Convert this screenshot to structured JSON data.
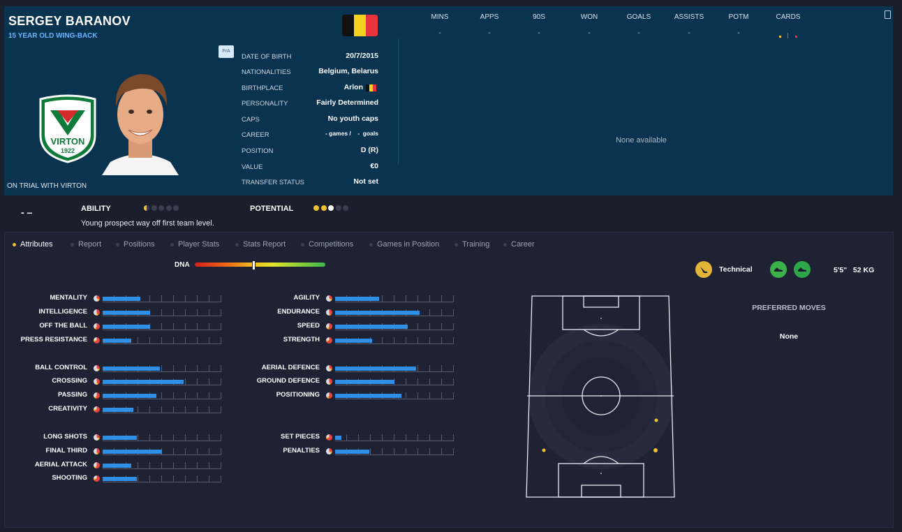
{
  "player": {
    "name": "SERGEY BARANOV",
    "subtitle": "15 YEAR OLD WING-BACK",
    "status": "ON TRIAL WITH VIRTON",
    "fra_badge": "FrA",
    "flag_colors": [
      "#111111",
      "#f5d21f",
      "#e8353d"
    ],
    "club_crest_text": "VIRTON",
    "club_year": "1922"
  },
  "info": [
    {
      "label": "DATE OF BIRTH",
      "value": "20/7/2015"
    },
    {
      "label": "NATIONALITIES",
      "value": "Belgium, Belarus"
    },
    {
      "label": "BIRTHPLACE",
      "value": "Arlon"
    },
    {
      "label": "PERSONALITY",
      "value": "Fairly Determined"
    },
    {
      "label": "CAPS",
      "value": "No youth caps"
    },
    {
      "label": "CAREER",
      "value": "- games /    -  goals"
    },
    {
      "label": "POSITION",
      "value": "D (R)"
    },
    {
      "label": "VALUE",
      "value": "€0"
    },
    {
      "label": "TRANSFER STATUS",
      "value": "Not set"
    }
  ],
  "stats": {
    "headers": [
      "MINS",
      "APPS",
      "90S",
      "WON",
      "GOALS",
      "ASSISTS",
      "POTM",
      "CARDS"
    ],
    "values": [
      "-",
      "-",
      "-",
      "-",
      "-",
      "-",
      "-",
      ""
    ],
    "empty_message": "None available"
  },
  "rating": {
    "dash": "- –",
    "ability_label": "ABILITY",
    "potential_label": "POTENTIAL",
    "ability_stars": 0.5,
    "potential_stars": 3,
    "prospect_text": "Young prospect way off first team level."
  },
  "tabs": [
    "Attributes",
    "Report",
    "Positions",
    "Player Stats",
    "Stats Report",
    "Competitions",
    "Games in Position",
    "Training",
    "Career"
  ],
  "active_tab": "Attributes",
  "dna": {
    "label": "DNA",
    "marker": 0.45
  },
  "attributes_left": [
    {
      "label": "MENTALITY",
      "value": 0.32
    },
    {
      "label": "INTELLIGENCE",
      "value": 0.4
    },
    {
      "label": "OFF THE BALL",
      "value": 0.4
    },
    {
      "label": "PRESS RESISTANCE",
      "value": 0.24
    },
    {
      "label": "BALL CONTROL",
      "value": 0.48
    },
    {
      "label": "CROSSING",
      "value": 0.68
    },
    {
      "label": "PASSING",
      "value": 0.45
    },
    {
      "label": "CREATIVITY",
      "value": 0.26
    },
    {
      "label": "LONG SHOTS",
      "value": 0.29
    },
    {
      "label": "FINAL THIRD",
      "value": 0.5
    },
    {
      "label": "AERIAL ATTACK",
      "value": 0.24
    },
    {
      "label": "SHOOTING",
      "value": 0.29
    }
  ],
  "attributes_right": [
    {
      "label": "AGILITY",
      "value": 0.37
    },
    {
      "label": "ENDURANCE",
      "value": 0.71
    },
    {
      "label": "SPEED",
      "value": 0.61
    },
    {
      "label": "STRENGTH",
      "value": 0.31
    },
    {
      "label": "AERIAL DEFENCE",
      "value": 0.68
    },
    {
      "label": "GROUND DEFENCE",
      "value": 0.5
    },
    {
      "label": "POSITIONING",
      "value": 0.56
    },
    {
      "label": "SET PIECES",
      "value": 0.05
    },
    {
      "label": "PENALTIES",
      "value": 0.29
    }
  ],
  "profile": {
    "style": "Technical",
    "height_weight": "5'5\"   52 KG",
    "preferred_moves_title": "PREFERRED MOVES",
    "preferred_moves": "None"
  },
  "colors": {
    "accent": "#f0c032",
    "bar": "#2f8ee6",
    "header_bg": "#0a3350",
    "link": "#6cb3ff"
  }
}
